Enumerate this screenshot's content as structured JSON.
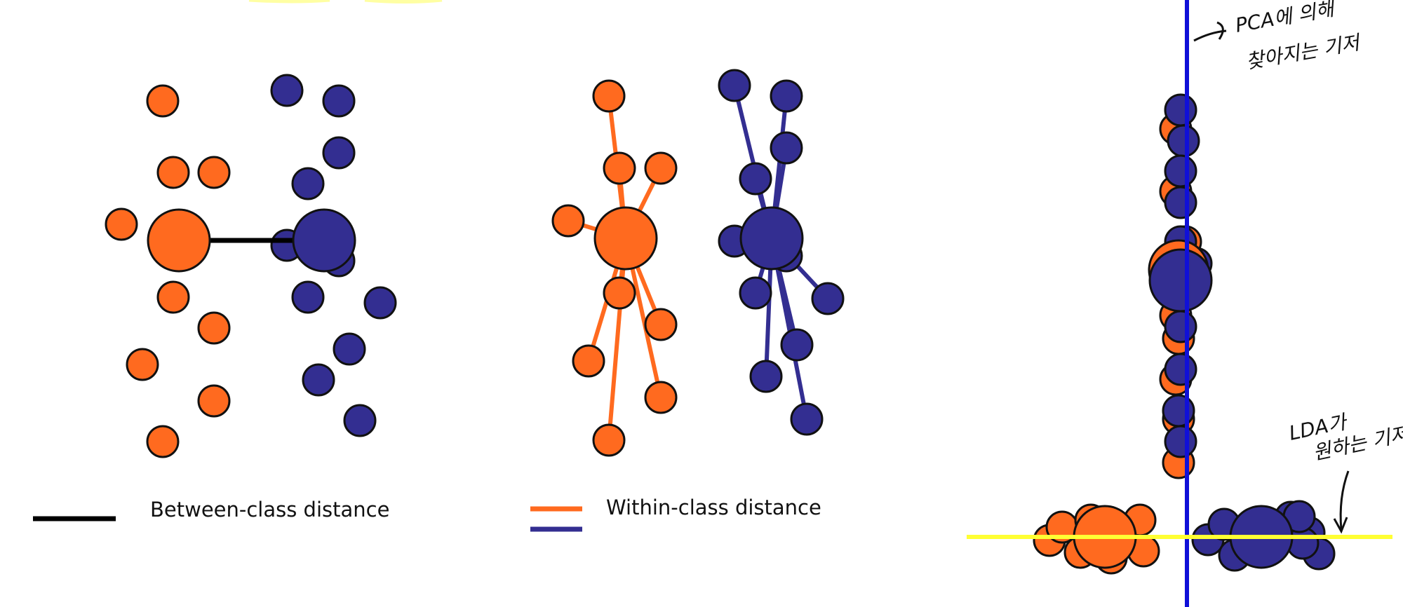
{
  "colors": {
    "class_a": "#ff6a1f",
    "class_b": "#332e91",
    "between_line": "#000000",
    "pca_axis": "#1010d8",
    "lda_axis": "#ffff33",
    "outline": "#111111"
  },
  "panels": {
    "between": {
      "legend_label": "Between-class distance"
    },
    "within": {
      "legend_label": "Within-class distance"
    },
    "projection": {
      "pca_note_line1": "PCA에 의해",
      "pca_note_line2": "찾아지는 기저",
      "lda_note_line1": "LDA가",
      "lda_note_line2": "원하는 기저"
    }
  }
}
